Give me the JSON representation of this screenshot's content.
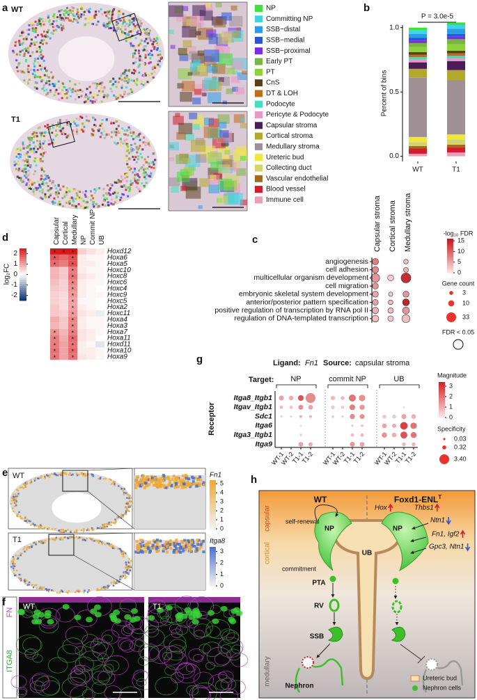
{
  "panel_labels": [
    "a",
    "b",
    "c",
    "d",
    "e",
    "f",
    "g",
    "h"
  ],
  "panel_a": {
    "wt": "WT",
    "t1": "T1"
  },
  "chart_data": [
    {
      "type": "bar",
      "stacked": true,
      "title": "P = 3.0e-5",
      "y_label": "Percent of bins",
      "categories": [
        "WT",
        "T1"
      ],
      "ylim": [
        -0.04,
        1.02
      ],
      "yticks": [
        {
          "value": 0,
          "label": "0.0"
        },
        {
          "value": 0.5,
          "label": "0.5"
        },
        {
          "value": 1,
          "label": "1.0"
        }
      ],
      "series": [
        {
          "name": "NP",
          "color": "#3de23d",
          "values": [
            0.02,
            0.02
          ]
        },
        {
          "name": "Committing NP",
          "color": "#3fd3e6",
          "values": [
            0.03,
            0.03
          ]
        },
        {
          "name": "SSB−distal",
          "color": "#2c9ce8",
          "values": [
            0.03,
            0.04
          ]
        },
        {
          "name": "SSB−medial",
          "color": "#2b55d9",
          "values": [
            0.02,
            0.02
          ]
        },
        {
          "name": "SSB−proximal",
          "color": "#7b2be0",
          "values": [
            0.02,
            0.02
          ]
        },
        {
          "name": "Early PT",
          "color": "#78b543",
          "values": [
            0.03,
            0.04
          ]
        },
        {
          "name": "PT",
          "color": "#8ed13a",
          "values": [
            0.04,
            0.05
          ]
        },
        {
          "name": "CnS",
          "color": "#5a3e1e",
          "values": [
            0.02,
            0.02
          ]
        },
        {
          "name": "DT & LOH",
          "color": "#c26a1e",
          "values": [
            0.02,
            0.02
          ]
        },
        {
          "name": "Podocyte",
          "color": "#45dfc0",
          "values": [
            0.02,
            0.02
          ]
        },
        {
          "name": "Pericyte & Podocyte",
          "color": "#e898c8",
          "values": [
            0.02,
            0.02
          ]
        },
        {
          "name": "Capsular stroma",
          "color": "#4a1d57",
          "values": [
            0.05,
            0.07
          ]
        },
        {
          "name": "Cortical stroma",
          "color": "#b3a82c",
          "values": [
            0.07,
            0.08
          ]
        },
        {
          "name": "Medullary stroma",
          "color": "#9e9095",
          "values": [
            0.46,
            0.42
          ]
        },
        {
          "name": "Ureteric bud",
          "color": "#f0e73a",
          "values": [
            0.04,
            0.04
          ]
        },
        {
          "name": "Collecting duct",
          "color": "#d4d46a",
          "values": [
            0.03,
            0.04
          ]
        },
        {
          "name": "Vascular endothelial",
          "color": "#9e6b1e",
          "values": [
            0.02,
            0.02
          ]
        },
        {
          "name": "Blood vessel",
          "color": "#d11d2e",
          "values": [
            0.04,
            0.04
          ]
        },
        {
          "name": "Immune cell",
          "color": "#e6a1b8",
          "values": [
            0.02,
            0.03
          ]
        }
      ]
    },
    {
      "type": "heatmap",
      "legend_title": "log₂FC",
      "columns": [
        "Capsular",
        "Cortical",
        "Medullary",
        "NP",
        "Commit NP",
        "UB"
      ],
      "rows": [
        "Hoxd12",
        "Hoxa6",
        "Hoxa5",
        "Hoxc10",
        "Hoxc8",
        "Hoxc6",
        "Hoxc4",
        "Hoxc9",
        "Hoxc5",
        "Hoxa2",
        "Hoxc11",
        "Hoxa4",
        "Hoxa3",
        "Hoxa7",
        "Hoxa11",
        "Hoxd11",
        "Hoxa10",
        "Hoxa9"
      ],
      "values": [
        [
          2.5,
          2.5,
          2.5,
          0.5,
          0.3,
          0.2
        ],
        [
          1.8,
          1.6,
          1.9,
          0.2,
          0.1,
          0.1
        ],
        [
          1.6,
          1.4,
          1.9,
          0.2,
          0.2,
          0.1
        ],
        [
          0.8,
          0.6,
          1.4,
          0.2,
          0.1,
          0.1
        ],
        [
          0.8,
          0.6,
          1.5,
          0.3,
          0.2,
          0.1
        ],
        [
          0.7,
          0.5,
          1.3,
          0.2,
          0.1,
          0.1
        ],
        [
          0.6,
          0.5,
          1.2,
          0.2,
          0.1,
          0
        ],
        [
          0.5,
          0.4,
          1.1,
          0.2,
          0.1,
          0.1
        ],
        [
          0.5,
          0.4,
          1,
          0.1,
          0.1,
          0
        ],
        [
          0.6,
          0.4,
          1,
          0.2,
          0.1,
          0
        ],
        [
          0.6,
          0.5,
          1.1,
          0.3,
          0.2,
          -0.2
        ],
        [
          0.9,
          0.6,
          1.3,
          0.2,
          0.1,
          0.1
        ],
        [
          0.8,
          0.6,
          1.3,
          0.2,
          0.1,
          0.1
        ],
        [
          1.2,
          0.8,
          1.4,
          0.3,
          0.2,
          0.1
        ],
        [
          1.4,
          0.9,
          1.6,
          0.3,
          0.2,
          0
        ],
        [
          1.4,
          1,
          1.5,
          0.2,
          0.1,
          -0.3
        ],
        [
          1.5,
          1,
          1.6,
          0.2,
          0.2,
          0.1
        ],
        [
          1.5,
          1,
          1.5,
          0.3,
          0.2,
          0.1
        ]
      ],
      "stars": [
        [
          "*",
          "*",
          "*",
          null,
          null,
          null
        ],
        [
          "*",
          null,
          "*",
          null,
          null,
          null
        ],
        [
          "*",
          null,
          "*",
          null,
          null,
          null
        ],
        [
          null,
          null,
          "*",
          null,
          null,
          null
        ],
        [
          null,
          null,
          "*",
          null,
          null,
          null
        ],
        [
          null,
          null,
          "*",
          null,
          null,
          null
        ],
        [
          null,
          null,
          "*",
          null,
          null,
          null
        ],
        [
          null,
          null,
          "*",
          null,
          null,
          null
        ],
        [
          null,
          null,
          "*",
          null,
          null,
          null
        ],
        [
          null,
          null,
          "*",
          null,
          null,
          null
        ],
        [
          null,
          null,
          "*",
          null,
          null,
          null
        ],
        [
          null,
          null,
          "*",
          null,
          null,
          null
        ],
        [
          null,
          null,
          "*",
          null,
          null,
          null
        ],
        [
          "*",
          null,
          "*",
          null,
          null,
          null
        ],
        [
          "*",
          null,
          "*",
          null,
          null,
          null
        ],
        [
          "*",
          null,
          "*",
          null,
          null,
          null
        ],
        [
          "*",
          null,
          "*",
          null,
          null,
          null
        ],
        [
          "*",
          null,
          "*",
          null,
          null,
          null
        ]
      ],
      "clim": [
        -2.5,
        2.5
      ],
      "cticks": [
        -2,
        -1,
        0,
        1,
        2
      ]
    },
    {
      "type": "dot",
      "columns": [
        "Capsular stroma",
        "Cortical stroma",
        "Medullary stroma"
      ],
      "rows": [
        "angiogenesis",
        "cell adhesion",
        "multicellular organism development",
        "cell migration",
        "embryonic skeletal system development",
        "anterior/posterior pattern specification",
        "positive regulation of transcription by RNA pol II",
        "regulation of DNA-templated transcription"
      ],
      "color_values": [
        [
          8,
          null,
          3
        ],
        [
          7,
          null,
          4
        ],
        [
          6,
          2,
          14
        ],
        [
          6,
          null,
          null
        ],
        [
          5,
          2,
          6
        ],
        [
          5,
          3,
          15
        ],
        [
          4,
          3,
          6
        ],
        [
          3,
          2,
          3
        ]
      ],
      "size_values": [
        [
          12,
          null,
          5
        ],
        [
          12,
          null,
          6
        ],
        [
          25,
          10,
          33
        ],
        [
          10,
          null,
          null
        ],
        [
          10,
          4,
          10
        ],
        [
          9,
          5,
          14
        ],
        [
          12,
          8,
          14
        ],
        [
          14,
          8,
          20
        ]
      ],
      "color_title": "-log₁₀ FDR",
      "clim": [
        0,
        16
      ],
      "cticks": [
        0,
        5,
        10,
        15
      ],
      "size_title": "Gene count",
      "size_legend": [
        3,
        10,
        33
      ],
      "ring_label": "FDR < 0.05"
    },
    {
      "type": "dot",
      "ligand_label": "Ligand:",
      "ligand": "Fn1",
      "source_label": "Source:",
      "source": "capsular stroma",
      "target_label": "Target:",
      "targets": [
        "NP",
        "commit NP",
        "UB"
      ],
      "samples": [
        "WT-1",
        "WT-2",
        "T1-1",
        "T1-2"
      ],
      "y_label": "Receptor",
      "rows": [
        "Itga8_Itgb1",
        "Itgav_Itgb1",
        "Sdc1",
        "Itga6",
        "Itga3_Itgb1",
        "Itga9"
      ],
      "color_values": [
        [
          1.2,
          1,
          2.5,
          1.6,
          0.8,
          0.8,
          2,
          1.5,
          null,
          null,
          null,
          null
        ],
        [
          0.8,
          0.6,
          1.5,
          1.2,
          0.6,
          0.5,
          1.8,
          1.4,
          null,
          null,
          0.3,
          null
        ],
        [
          0.5,
          0.4,
          1,
          0.9,
          0.5,
          0.4,
          1.6,
          1.5,
          0.6,
          0.6,
          1.2,
          1
        ],
        [
          null,
          null,
          0.3,
          null,
          null,
          null,
          0.5,
          0.6,
          1.2,
          1,
          2.8,
          2
        ],
        [
          null,
          null,
          0.5,
          null,
          null,
          null,
          0.8,
          0.8,
          1.5,
          1,
          2.5,
          2
        ],
        [
          null,
          null,
          1.2,
          1,
          null,
          null,
          1.4,
          1.2,
          null,
          null,
          0.8,
          0.9
        ]
      ],
      "size_values": [
        [
          0.6,
          0.5,
          0.9,
          3.4,
          0.4,
          0.3,
          1.5,
          1.2,
          null,
          null,
          null,
          null
        ],
        [
          0.2,
          0.2,
          0.6,
          0.5,
          0.3,
          0.2,
          0.9,
          0.7,
          null,
          null,
          0.03,
          null
        ],
        [
          0.03,
          0.03,
          0.1,
          0.1,
          0.1,
          0.05,
          0.7,
          0.6,
          0.3,
          0.3,
          0.6,
          0.5
        ],
        [
          null,
          null,
          0.03,
          null,
          null,
          null,
          0.05,
          0.1,
          0.5,
          0.4,
          1.8,
          1.2
        ],
        [
          null,
          null,
          0.05,
          null,
          null,
          null,
          0.2,
          0.2,
          0.7,
          0.5,
          1.5,
          1
        ],
        [
          null,
          null,
          0.5,
          0.4,
          null,
          null,
          0.6,
          0.5,
          null,
          null,
          0.3,
          0.3
        ]
      ],
      "color_title": "Magnitude",
      "clim": [
        0,
        3.4
      ],
      "cticks": [
        0,
        1,
        2,
        3
      ],
      "size_title": "Specificity",
      "size_legend": [
        0.03,
        0.32,
        {
          "value": 3.4,
          "label": "3.40"
        }
      ]
    }
  ],
  "panel_e": {
    "wt": "WT",
    "t1": "T1",
    "colorbars": [
      {
        "name": "Fn1",
        "lim": [
          0,
          5.4
        ],
        "ticks": [
          0,
          1,
          2,
          3,
          4,
          5
        ],
        "color": "#f0a830"
      },
      {
        "name": "Itga8",
        "lim": [
          0,
          3.4
        ],
        "ticks": [
          0,
          1,
          2,
          3
        ],
        "color": "#4a6fd0"
      }
    ]
  },
  "panel_f": {
    "stain1": "FN",
    "stain2": "ITGA8",
    "wt": "WT",
    "t1": "T1"
  },
  "panel_h": {
    "wt": "WT",
    "mutant": "Foxd1-ENL",
    "mutant_sup": "T",
    "zones": [
      "capsular",
      "cortical",
      "medullary"
    ],
    "self_renewal": "self-renewal",
    "np": "NP",
    "commitment": "commitment",
    "pta": "PTA",
    "rv": "RV",
    "ssb": "SSB",
    "nephron": "Nephron",
    "ub": "UB",
    "genes": [
      {
        "text": "Hox",
        "dir": "up"
      },
      {
        "text": "Thbs1",
        "dir": "up"
      },
      {
        "text": "Ntn1",
        "dir": "down"
      },
      {
        "text": "Fn1, Igf2",
        "dir": "up"
      },
      {
        "text": "Gpc3, Ntn1",
        "dir": "down"
      }
    ],
    "legend": [
      "Ureteric bud",
      "Nephron cells"
    ]
  }
}
